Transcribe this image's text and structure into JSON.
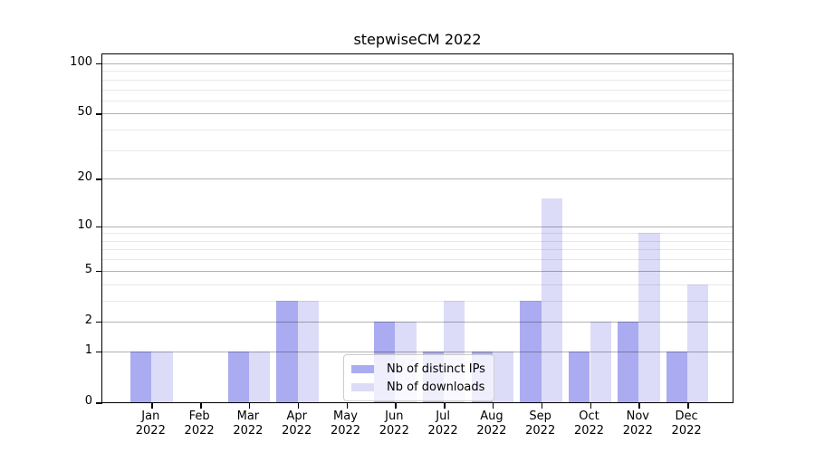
{
  "title": "stepwiseCM 2022",
  "chart_data": {
    "type": "bar",
    "title": "stepwiseCM 2022",
    "categories": [
      "Jan",
      "Feb",
      "Mar",
      "Apr",
      "May",
      "Jun",
      "Jul",
      "Aug",
      "Sep",
      "Oct",
      "Nov",
      "Dec"
    ],
    "category_year": "2022",
    "series": [
      {
        "name": "Nb of distinct IPs",
        "color": "#ababf2",
        "values": [
          1,
          0,
          1,
          3,
          0,
          2,
          1,
          1,
          3,
          1,
          2,
          1
        ]
      },
      {
        "name": "Nb of downloads",
        "color": "#dcdcf8",
        "values": [
          1,
          0,
          1,
          3,
          0,
          2,
          3,
          1,
          15,
          2,
          9,
          4
        ]
      }
    ],
    "xlabel": "",
    "ylabel": "",
    "yscale": "log10(1+x)",
    "ylim": [
      0,
      113
    ],
    "y_major_ticks": [
      0,
      1,
      2,
      5,
      10,
      20,
      50,
      100
    ],
    "y_minor_gridlines": [
      3,
      4,
      6,
      7,
      8,
      9,
      30,
      40,
      60,
      70,
      80,
      90
    ],
    "grid": "on",
    "legend_position": "lower center"
  },
  "colors": {
    "distinct_ips_bar": "#ababf2",
    "downloads_bar": "#dcdcf8",
    "axis": "#000000",
    "legend_border": "#cccccc",
    "background": "#ffffff"
  }
}
